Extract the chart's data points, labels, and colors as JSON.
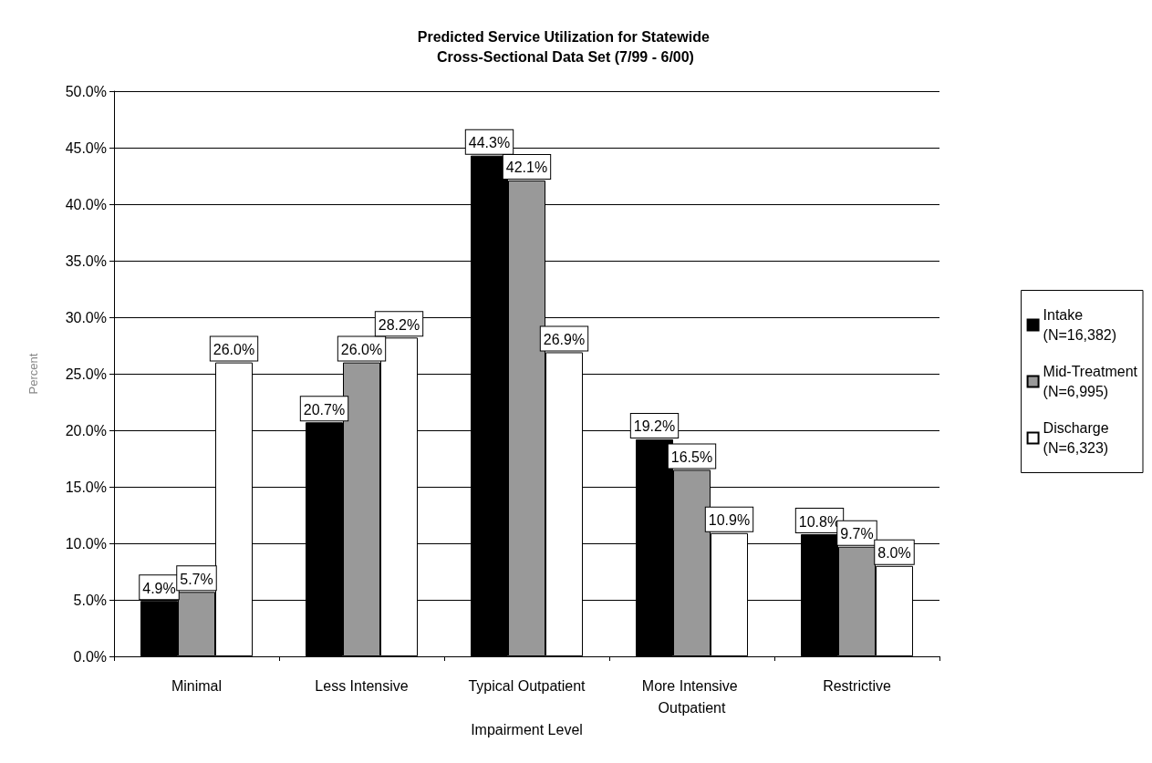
{
  "chart_data": {
    "type": "bar",
    "title": "Predicted Service Utilization for Statewide Cross-Sectional Data Set (7/99 - 6/00)",
    "xlabel": "Impairment Level",
    "ylabel": "Percent",
    "categories": [
      "Minimal",
      "Less Intensive",
      "Typical Outpatient",
      "More Intensive Outpatient",
      "Restrictive"
    ],
    "series": [
      {
        "name": "Intake (N=16,382)",
        "color": "#000000",
        "values": [
          4.9,
          20.7,
          44.3,
          19.2,
          10.8
        ],
        "value_labels": [
          "4.9%",
          "20.7%",
          "44.3%",
          "19.2%",
          "10.8%"
        ]
      },
      {
        "name": "Mid-Treatment (N=6,995)",
        "color": "#999999",
        "values": [
          5.7,
          26.0,
          42.1,
          16.5,
          9.7
        ],
        "value_labels": [
          "5.7%",
          "26.0%",
          "42.1%",
          "16.5%",
          "9.7%"
        ]
      },
      {
        "name": "Discharge (N=6,323)",
        "color": "#ffffff",
        "values": [
          26.0,
          28.2,
          26.9,
          10.9,
          8.0
        ],
        "value_labels": [
          "26.0%",
          "28.2%",
          "26.9%",
          "10.9%",
          "8.0%"
        ]
      }
    ],
    "ylim": [
      0,
      50
    ],
    "yticks": [
      {
        "value": 0,
        "label": "0.0%"
      },
      {
        "value": 5,
        "label": "5.0%"
      },
      {
        "value": 10,
        "label": "10.0%"
      },
      {
        "value": 15,
        "label": "15.0%"
      },
      {
        "value": 20,
        "label": "20.0%"
      },
      {
        "value": 25,
        "label": "25.0%"
      },
      {
        "value": 30,
        "label": "30.0%"
      },
      {
        "value": 35,
        "label": "35.0%"
      },
      {
        "value": 40,
        "label": "40.0%"
      },
      {
        "value": 45,
        "label": "45.0%"
      },
      {
        "value": 50,
        "label": "50.0%"
      }
    ],
    "grid": "y",
    "legend": "right"
  }
}
